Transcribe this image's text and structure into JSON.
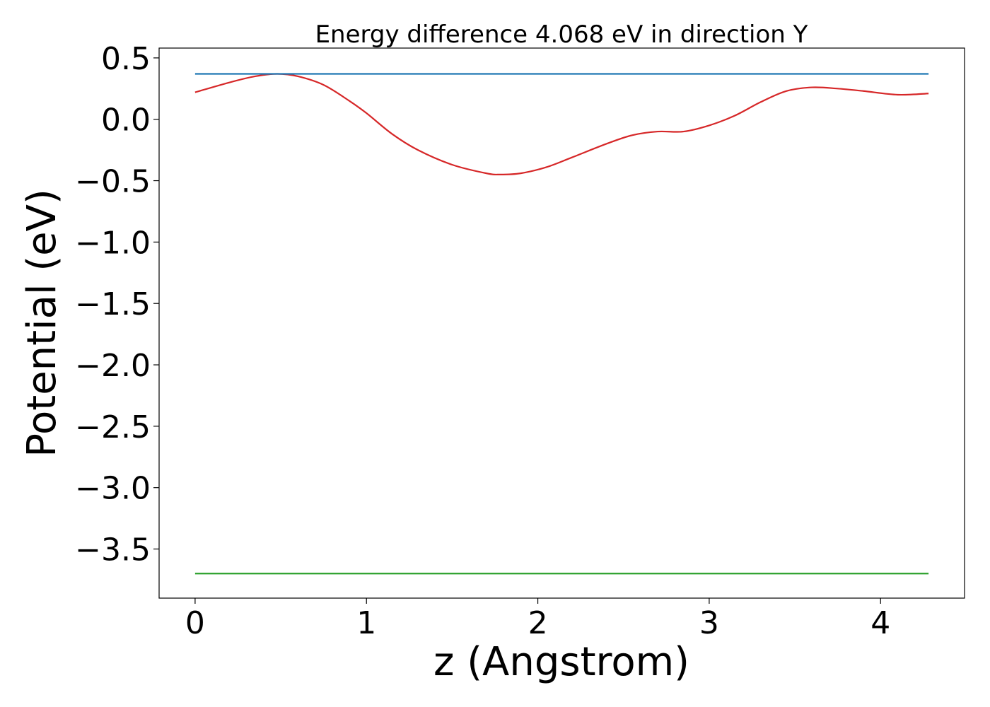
{
  "chart_data": {
    "type": "line",
    "title": "Energy difference 4.068 eV in direction Y",
    "xlabel": "z (Angstrom)",
    "ylabel": "Potential (eV)",
    "xlim": [
      -0.21,
      4.49
    ],
    "ylim": [
      -3.9,
      0.58
    ],
    "xticks": [
      {
        "value": 0,
        "label": "0"
      },
      {
        "value": 1,
        "label": "1"
      },
      {
        "value": 2,
        "label": "2"
      },
      {
        "value": 3,
        "label": "3"
      },
      {
        "value": 4,
        "label": "4"
      }
    ],
    "yticks": [
      {
        "value": 0.5,
        "label": "0.5"
      },
      {
        "value": 0.0,
        "label": "0.0"
      },
      {
        "value": -0.5,
        "label": "−0.5"
      },
      {
        "value": -1.0,
        "label": "−1.0"
      },
      {
        "value": -1.5,
        "label": "−1.5"
      },
      {
        "value": -2.0,
        "label": "−2.0"
      },
      {
        "value": -2.5,
        "label": "−2.5"
      },
      {
        "value": -3.0,
        "label": "−3.0"
      },
      {
        "value": -3.5,
        "label": "−3.5"
      }
    ],
    "grid": false,
    "legend": "none",
    "series": [
      {
        "color": "#d62728",
        "x": [
          0.0,
          0.2,
          0.35,
          0.48,
          0.6,
          0.75,
          0.9,
          1.0,
          1.15,
          1.3,
          1.5,
          1.7,
          1.78,
          1.9,
          2.05,
          2.2,
          2.4,
          2.55,
          2.7,
          2.85,
          3.0,
          3.15,
          3.3,
          3.45,
          3.6,
          3.75,
          3.9,
          4.1,
          4.28
        ],
        "y": [
          0.22,
          0.3,
          0.35,
          0.37,
          0.35,
          0.28,
          0.15,
          0.05,
          -0.12,
          -0.25,
          -0.37,
          -0.44,
          -0.45,
          -0.44,
          -0.39,
          -0.31,
          -0.2,
          -0.13,
          -0.1,
          -0.1,
          -0.05,
          0.03,
          0.14,
          0.23,
          0.26,
          0.25,
          0.23,
          0.2,
          0.21
        ]
      },
      {
        "color": "#1f77b4",
        "x": [
          0.0,
          4.28
        ],
        "y": [
          0.37,
          0.37
        ]
      },
      {
        "color": "#2ca02c",
        "x": [
          0.0,
          4.28
        ],
        "y": [
          -3.7,
          -3.7
        ]
      }
    ]
  }
}
